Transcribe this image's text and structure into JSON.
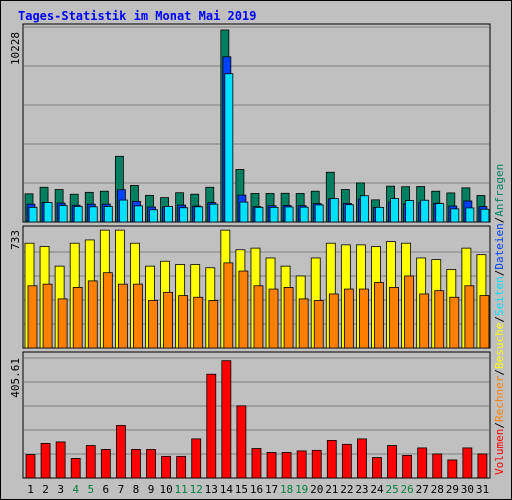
{
  "title": "Tages-Statistik im Monat Mai 2019",
  "colors": {
    "background": "#c0c0c0",
    "anfragen": "#008060",
    "dateien": "#0040ff",
    "seiten": "#00e0ff",
    "besuche": "#ffff00",
    "rechner": "#ff8000",
    "volumen": "#ff0000",
    "weekend": "#008040",
    "weekday": "#000000"
  },
  "right_legend": [
    {
      "text": "Volumen",
      "color": "#ff0000"
    },
    {
      "text": "/",
      "color": "#000000"
    },
    {
      "text": "Rechner",
      "color": "#ff8000"
    },
    {
      "text": "/",
      "color": "#000000"
    },
    {
      "text": "Besuche",
      "color": "#ffff00"
    },
    {
      "text": "/",
      "color": "#000000"
    },
    {
      "text": "Seiten",
      "color": "#00e0ff"
    },
    {
      "text": "/",
      "color": "#000000"
    },
    {
      "text": "Dateien",
      "color": "#0040ff"
    },
    {
      "text": "/",
      "color": "#000000"
    },
    {
      "text": "Anfragen",
      "color": "#008060"
    }
  ],
  "chart_data": [
    {
      "type": "bar",
      "panel": "top",
      "ymax_label": "10228",
      "ylim": [
        0,
        10228
      ],
      "categories": [
        "1",
        "2",
        "3",
        "4",
        "5",
        "6",
        "7",
        "8",
        "9",
        "10",
        "11",
        "12",
        "13",
        "14",
        "15",
        "16",
        "17",
        "18",
        "19",
        "20",
        "21",
        "22",
        "23",
        "24",
        "25",
        "26",
        "27",
        "28",
        "29",
        "30",
        "31"
      ],
      "series": [
        {
          "name": "Anfragen",
          "values": [
            1500,
            1850,
            1730,
            1480,
            1580,
            1640,
            3500,
            1950,
            1420,
            1300,
            1560,
            1480,
            1850,
            10228,
            2800,
            1520,
            1520,
            1530,
            1520,
            1640,
            2650,
            1730,
            2080,
            1180,
            1910,
            1880,
            1890,
            1640,
            1550,
            1820,
            1410
          ]
        },
        {
          "name": "Dateien",
          "values": [
            950,
            1040,
            1010,
            890,
            950,
            950,
            1720,
            1100,
            800,
            800,
            900,
            850,
            1030,
            8800,
            1430,
            820,
            870,
            880,
            870,
            980,
            1230,
            990,
            1220,
            780,
            1070,
            970,
            1030,
            1000,
            850,
            1120,
            820
          ]
        },
        {
          "name": "Seiten",
          "values": [
            780,
            1040,
            880,
            830,
            810,
            830,
            1170,
            860,
            650,
            830,
            760,
            810,
            950,
            7900,
            1060,
            780,
            780,
            800,
            790,
            910,
            1250,
            920,
            1400,
            780,
            1250,
            1140,
            1160,
            980,
            700,
            750,
            680
          ]
        }
      ]
    },
    {
      "type": "bar",
      "panel": "middle",
      "ymax_label": "733",
      "ylim": [
        0,
        733
      ],
      "categories": [
        "1",
        "2",
        "3",
        "4",
        "5",
        "6",
        "7",
        "8",
        "9",
        "10",
        "11",
        "12",
        "13",
        "14",
        "15",
        "16",
        "17",
        "18",
        "19",
        "20",
        "21",
        "22",
        "23",
        "24",
        "25",
        "26",
        "27",
        "28",
        "29",
        "30",
        "31"
      ],
      "series": [
        {
          "name": "Besuche",
          "values": [
            640,
            620,
            500,
            640,
            660,
            720,
            720,
            640,
            500,
            530,
            510,
            510,
            490,
            720,
            600,
            610,
            550,
            500,
            440,
            550,
            640,
            630,
            630,
            620,
            650,
            640,
            550,
            540,
            480,
            610,
            570
          ]
        },
        {
          "name": "Rechner",
          "values": [
            380,
            390,
            300,
            370,
            410,
            460,
            390,
            390,
            290,
            340,
            320,
            310,
            290,
            520,
            470,
            380,
            360,
            370,
            300,
            290,
            330,
            360,
            360,
            400,
            370,
            440,
            330,
            350,
            310,
            380,
            320
          ]
        }
      ]
    },
    {
      "type": "bar",
      "panel": "bottom",
      "ymax_label": "405.61",
      "ylim": [
        0,
        405.61
      ],
      "categories": [
        "1",
        "2",
        "3",
        "4",
        "5",
        "6",
        "7",
        "8",
        "9",
        "10",
        "11",
        "12",
        "13",
        "14",
        "15",
        "16",
        "17",
        "18",
        "19",
        "20",
        "21",
        "22",
        "23",
        "24",
        "25",
        "26",
        "27",
        "28",
        "29",
        "30",
        "31"
      ],
      "series": [
        {
          "name": "Volumen",
          "values": [
            78,
            115,
            120,
            65,
            108,
            95,
            175,
            95,
            95,
            72,
            72,
            130,
            345,
            390,
            240,
            98,
            85,
            85,
            90,
            92,
            125,
            112,
            130,
            68,
            108,
            75,
            100,
            80,
            60,
            100,
            80
          ]
        }
      ]
    }
  ],
  "x_labels": [
    {
      "text": "1",
      "weekend": false
    },
    {
      "text": "2",
      "weekend": false
    },
    {
      "text": "3",
      "weekend": false
    },
    {
      "text": "4",
      "weekend": true
    },
    {
      "text": "5",
      "weekend": true
    },
    {
      "text": "6",
      "weekend": false
    },
    {
      "text": "7",
      "weekend": false
    },
    {
      "text": "8",
      "weekend": false
    },
    {
      "text": "9",
      "weekend": false
    },
    {
      "text": "10",
      "weekend": false
    },
    {
      "text": "11",
      "weekend": true
    },
    {
      "text": "12",
      "weekend": true
    },
    {
      "text": "13",
      "weekend": false
    },
    {
      "text": "14",
      "weekend": false
    },
    {
      "text": "15",
      "weekend": false
    },
    {
      "text": "16",
      "weekend": false
    },
    {
      "text": "17",
      "weekend": false
    },
    {
      "text": "18",
      "weekend": true
    },
    {
      "text": "19",
      "weekend": true
    },
    {
      "text": "20",
      "weekend": false
    },
    {
      "text": "21",
      "weekend": false
    },
    {
      "text": "22",
      "weekend": false
    },
    {
      "text": "23",
      "weekend": false
    },
    {
      "text": "24",
      "weekend": false
    },
    {
      "text": "25",
      "weekend": true
    },
    {
      "text": "26",
      "weekend": true
    },
    {
      "text": "27",
      "weekend": false
    },
    {
      "text": "28",
      "weekend": false
    },
    {
      "text": "29",
      "weekend": false
    },
    {
      "text": "30",
      "weekend": false
    },
    {
      "text": "31",
      "weekend": false
    }
  ]
}
